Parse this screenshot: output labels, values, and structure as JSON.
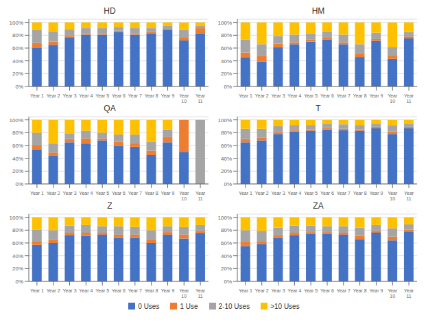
{
  "chart_data": [
    {
      "type": "bar",
      "title": "HD",
      "stacked": true,
      "grid": true,
      "categories": [
        "Year 1",
        "Year 2",
        "Year 3",
        "Year 4",
        "Year 5",
        "Year 6",
        "Year 7",
        "Year 8",
        "Year 9",
        "Year\n10",
        "Year\n11"
      ],
      "series": [
        {
          "name": "0 Uses",
          "color": "#4472c4",
          "values": [
            60,
            65,
            77,
            81,
            81,
            85,
            81,
            83,
            88,
            72,
            83
          ]
        },
        {
          "name": "1 Use",
          "color": "#ed7d31",
          "values": [
            8,
            5,
            2,
            2,
            2,
            2,
            2,
            2,
            2,
            4,
            8
          ]
        },
        {
          "name": "2-10 Uses",
          "color": "#a5a5a5",
          "values": [
            20,
            16,
            10,
            8,
            8,
            6,
            8,
            6,
            5,
            12,
            4
          ]
        },
        {
          "name": ">10 Uses",
          "color": "#ffc000",
          "values": [
            12,
            14,
            11,
            9,
            9,
            7,
            9,
            9,
            5,
            12,
            5
          ]
        }
      ],
      "ylim": [
        0,
        105
      ],
      "yticks": [
        {
          "value": 0,
          "label": "0%"
        },
        {
          "value": 20,
          "label": "20%"
        },
        {
          "value": 40,
          "label": "40%"
        },
        {
          "value": 60,
          "label": "60%"
        },
        {
          "value": 80,
          "label": "80%"
        },
        {
          "value": 100,
          "label": "100%"
        }
      ]
    },
    {
      "type": "bar",
      "title": "HM",
      "stacked": true,
      "grid": true,
      "categories": [
        "Year 1",
        "Year 2",
        "Year 3",
        "Year 4",
        "Year 5",
        "Year 6",
        "Year 7",
        "Year 8",
        "Year 9",
        "Year\n10",
        "Year\n11"
      ],
      "series": [
        {
          "name": "0 Uses",
          "color": "#4472c4",
          "values": [
            45,
            39,
            61,
            66,
            70,
            73,
            66,
            46,
            71,
            43,
            75
          ]
        },
        {
          "name": "1 Use",
          "color": "#ed7d31",
          "values": [
            8,
            9,
            6,
            3,
            3,
            3,
            3,
            6,
            3,
            6,
            3
          ]
        },
        {
          "name": "2-10 Uses",
          "color": "#a5a5a5",
          "values": [
            20,
            18,
            12,
            12,
            10,
            10,
            12,
            14,
            10,
            12,
            7
          ]
        },
        {
          "name": ">10 Uses",
          "color": "#ffc000",
          "values": [
            27,
            34,
            21,
            19,
            17,
            14,
            19,
            34,
            16,
            39,
            15
          ]
        }
      ],
      "ylim": [
        0,
        105
      ],
      "yticks": [
        {
          "value": 0,
          "label": "0%"
        },
        {
          "value": 20,
          "label": "20%"
        },
        {
          "value": 40,
          "label": "40%"
        },
        {
          "value": 60,
          "label": "60%"
        },
        {
          "value": 80,
          "label": "80%"
        },
        {
          "value": 100,
          "label": "100%"
        }
      ]
    },
    {
      "type": "bar",
      "title": "QA",
      "stacked": true,
      "grid": true,
      "categories": [
        "Year 1",
        "Year 2",
        "Year 3",
        "Year 4",
        "Year 5",
        "Year 6",
        "Year 7",
        "Year 8",
        "Year 9",
        "Year\n10",
        "Year\n11"
      ],
      "series": [
        {
          "name": "0 Uses",
          "color": "#4472c4",
          "values": [
            54,
            44,
            65,
            63,
            68,
            59,
            58,
            45,
            65,
            50,
            0
          ]
        },
        {
          "name": "1 Use",
          "color": "#ed7d31",
          "values": [
            6,
            5,
            5,
            8,
            3,
            7,
            6,
            7,
            8,
            50,
            0
          ]
        },
        {
          "name": "2-10 Uses",
          "color": "#a5a5a5",
          "values": [
            20,
            14,
            9,
            12,
            9,
            11,
            13,
            14,
            12,
            0,
            100
          ]
        },
        {
          "name": ">10 Uses",
          "color": "#ffc000",
          "values": [
            20,
            37,
            21,
            17,
            20,
            23,
            23,
            34,
            15,
            0,
            0
          ]
        }
      ],
      "ylim": [
        0,
        105
      ],
      "yticks": [
        {
          "value": 0,
          "label": "0%"
        },
        {
          "value": 20,
          "label": "20%"
        },
        {
          "value": 40,
          "label": "40%"
        },
        {
          "value": 60,
          "label": "60%"
        },
        {
          "value": 80,
          "label": "80%"
        },
        {
          "value": 100,
          "label": "100%"
        }
      ]
    },
    {
      "type": "bar",
      "title": "T",
      "stacked": true,
      "grid": true,
      "categories": [
        "Year 1",
        "Year 2",
        "Year 3",
        "Year 4",
        "Year 5",
        "Year 6",
        "Year 7",
        "Year 8",
        "Year 9",
        "Year\n10",
        "Year\n11"
      ],
      "series": [
        {
          "name": "0 Uses",
          "color": "#4472c4",
          "values": [
            65,
            68,
            78,
            82,
            83,
            85,
            84,
            83,
            87,
            78,
            87
          ]
        },
        {
          "name": "1 Use",
          "color": "#ed7d31",
          "values": [
            5,
            4,
            3,
            2,
            2,
            2,
            2,
            2,
            2,
            4,
            2
          ]
        },
        {
          "name": "2-10 Uses",
          "color": "#a5a5a5",
          "values": [
            16,
            14,
            9,
            8,
            7,
            7,
            7,
            7,
            5,
            9,
            5
          ]
        },
        {
          "name": ">10 Uses",
          "color": "#ffc000",
          "values": [
            14,
            14,
            10,
            8,
            8,
            6,
            7,
            8,
            6,
            9,
            6
          ]
        }
      ],
      "ylim": [
        0,
        105
      ],
      "yticks": [
        {
          "value": 0,
          "label": "0%"
        },
        {
          "value": 20,
          "label": "20%"
        },
        {
          "value": 40,
          "label": "40%"
        },
        {
          "value": 60,
          "label": "60%"
        },
        {
          "value": 80,
          "label": "80%"
        },
        {
          "value": 100,
          "label": "100%"
        }
      ]
    },
    {
      "type": "bar",
      "title": "Z",
      "stacked": true,
      "grid": true,
      "categories": [
        "Year 1",
        "Year 2",
        "Year 3",
        "Year 4",
        "Year 5",
        "Year 6",
        "Year 7",
        "Year 8",
        "Year 9",
        "Year\n10",
        "Year\n11"
      ],
      "series": [
        {
          "name": "0 Uses",
          "color": "#4472c4",
          "values": [
            57,
            60,
            72,
            71,
            73,
            68,
            68,
            60,
            73,
            67,
            75
          ]
        },
        {
          "name": "1 Use",
          "color": "#ed7d31",
          "values": [
            6,
            5,
            4,
            5,
            3,
            5,
            5,
            6,
            4,
            6,
            4
          ]
        },
        {
          "name": "2-10 Uses",
          "color": "#a5a5a5",
          "values": [
            18,
            15,
            11,
            12,
            10,
            13,
            12,
            14,
            9,
            12,
            9
          ]
        },
        {
          "name": ">10 Uses",
          "color": "#ffc000",
          "values": [
            19,
            20,
            13,
            12,
            14,
            14,
            15,
            20,
            14,
            15,
            12
          ]
        }
      ],
      "ylim": [
        0,
        105
      ],
      "yticks": [
        {
          "value": 0,
          "label": "0%"
        },
        {
          "value": 20,
          "label": "20%"
        },
        {
          "value": 40,
          "label": "40%"
        },
        {
          "value": 60,
          "label": "60%"
        },
        {
          "value": 80,
          "label": "80%"
        },
        {
          "value": 100,
          "label": "100%"
        }
      ]
    },
    {
      "type": "bar",
      "title": "ZA",
      "stacked": true,
      "grid": true,
      "categories": [
        "Year 1",
        "Year 2",
        "Year 3",
        "Year 4",
        "Year 5",
        "Year 6",
        "Year 7",
        "Year 8",
        "Year 9",
        "Year\n10",
        "Year\n11"
      ],
      "series": [
        {
          "name": "0 Uses",
          "color": "#4472c4",
          "values": [
            55,
            58,
            68,
            72,
            74,
            74,
            73,
            66,
            76,
            64,
            78
          ]
        },
        {
          "name": "1 Use",
          "color": "#ed7d31",
          "values": [
            7,
            5,
            4,
            4,
            3,
            3,
            3,
            5,
            3,
            6,
            3
          ]
        },
        {
          "name": "2-10 Uses",
          "color": "#a5a5a5",
          "values": [
            18,
            16,
            12,
            11,
            10,
            9,
            10,
            13,
            9,
            13,
            8
          ]
        },
        {
          "name": ">10 Uses",
          "color": "#ffc000",
          "values": [
            20,
            21,
            16,
            13,
            13,
            14,
            14,
            16,
            12,
            17,
            11
          ]
        }
      ],
      "ylim": [
        0,
        105
      ],
      "yticks": [
        {
          "value": 0,
          "label": "0%"
        },
        {
          "value": 20,
          "label": "20%"
        },
        {
          "value": 40,
          "label": "40%"
        },
        {
          "value": 60,
          "label": "60%"
        },
        {
          "value": 80,
          "label": "80%"
        },
        {
          "value": 100,
          "label": "100%"
        }
      ]
    }
  ]
}
